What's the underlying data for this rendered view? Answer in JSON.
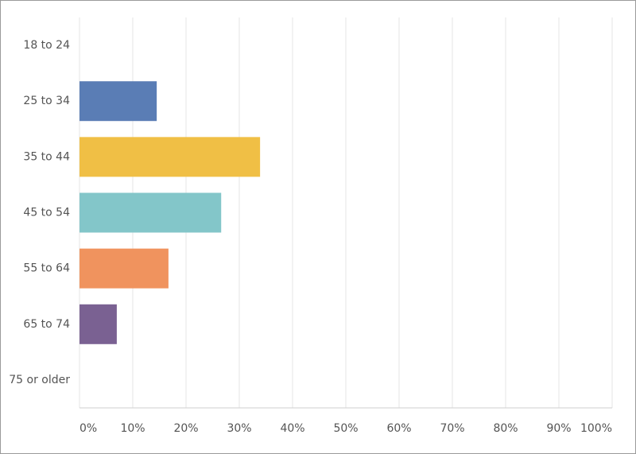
{
  "chart_data": {
    "type": "bar",
    "orientation": "horizontal",
    "categories": [
      "18 to 24",
      "25 to 34",
      "35 to 44",
      "45 to 54",
      "55 to 64",
      "65 to 74",
      "75 or older"
    ],
    "values": [
      0,
      14.5,
      33.9,
      26.6,
      16.7,
      7.0,
      0
    ],
    "colors": [
      null,
      "#5a7db5",
      "#f0bf45",
      "#83c6c9",
      "#f0935e",
      "#7a6192",
      null
    ],
    "xlim": [
      0,
      100
    ],
    "xticks": [
      {
        "value": 0,
        "label": "0%"
      },
      {
        "value": 10,
        "label": "10%"
      },
      {
        "value": 20,
        "label": "20%"
      },
      {
        "value": 30,
        "label": "30%"
      },
      {
        "value": 40,
        "label": "40%"
      },
      {
        "value": 50,
        "label": "50%"
      },
      {
        "value": 60,
        "label": "60%"
      },
      {
        "value": 70,
        "label": "70%"
      },
      {
        "value": 80,
        "label": "80%"
      },
      {
        "value": 90,
        "label": "90%"
      },
      {
        "value": 100,
        "label": "100%"
      }
    ],
    "grid": true
  }
}
